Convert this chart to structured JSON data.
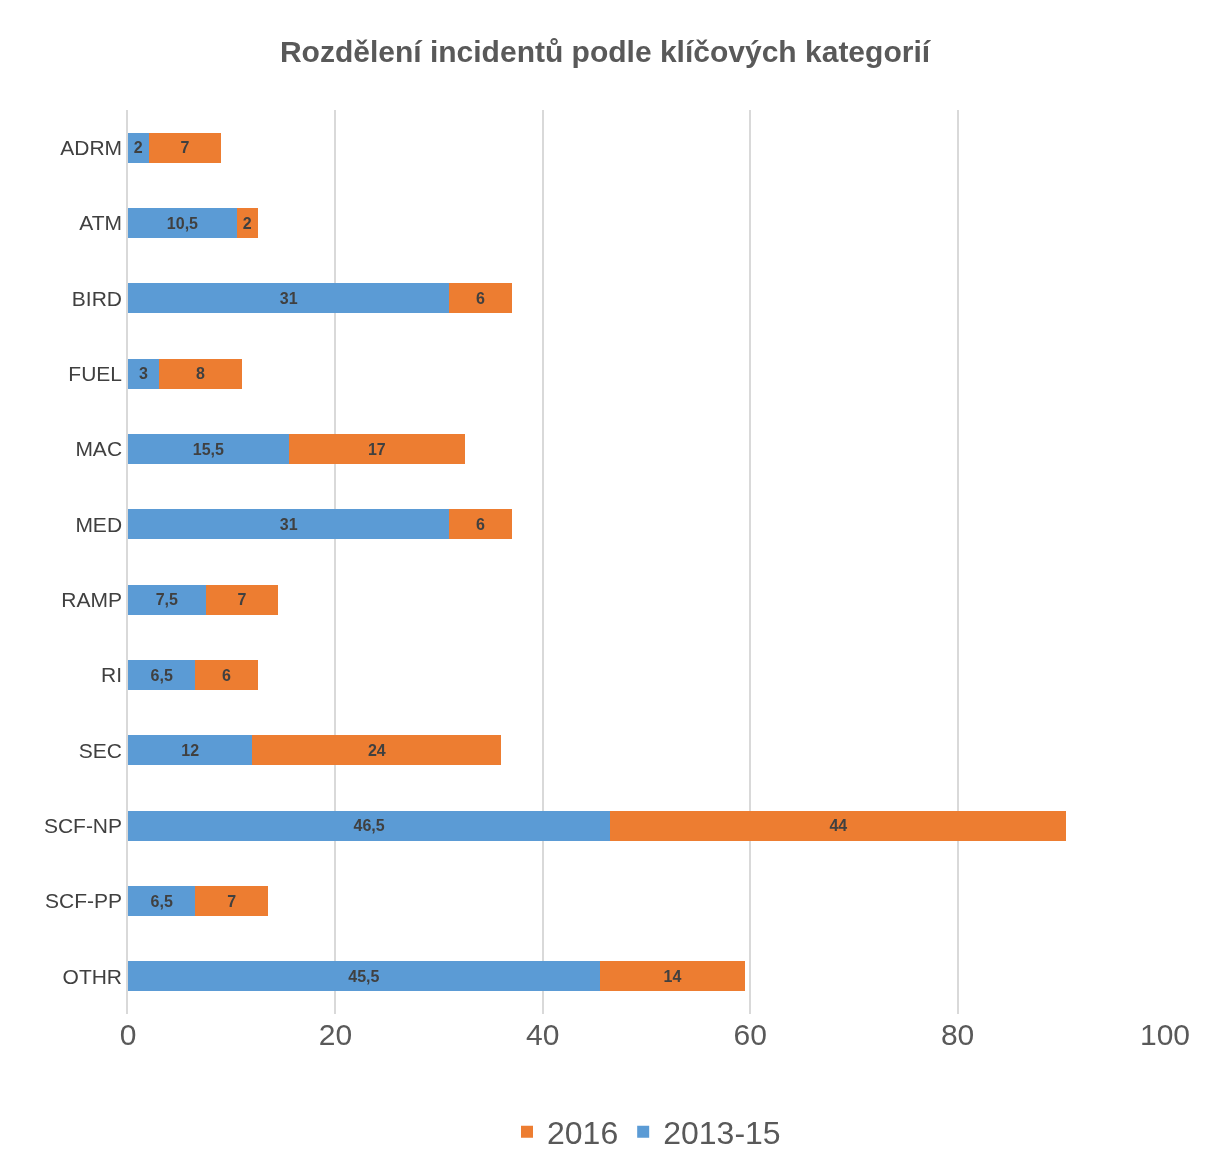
{
  "chart_data": {
    "type": "bar",
    "orientation": "horizontal",
    "stacked": true,
    "title": "Rozdělení incidentů podle klíčových kategorií",
    "categories": [
      "ADRM",
      "ATM",
      "BIRD",
      "FUEL",
      "MAC",
      "MED",
      "RAMP",
      "RI",
      "SEC",
      "SCF-NP",
      "SCF-PP",
      "OTHR"
    ],
    "series": [
      {
        "name": "2013-15",
        "color": "#5b9bd5",
        "values": [
          2,
          10.5,
          31,
          3,
          15.5,
          31,
          7.5,
          6.5,
          12,
          46.5,
          6.5,
          45.5
        ],
        "value_labels": [
          "2",
          "10,5",
          "31",
          "3",
          "15,5",
          "31",
          "7,5",
          "6,5",
          "12",
          "46,5",
          "6,5",
          "45,5"
        ]
      },
      {
        "name": "2016",
        "color": "#ed7d31",
        "values": [
          7,
          2,
          6,
          8,
          17,
          6,
          7,
          6,
          24,
          44,
          7,
          14
        ],
        "value_labels": [
          "7",
          "2",
          "6",
          "8",
          "17",
          "6",
          "7",
          "6",
          "24",
          "44",
          "7",
          "14"
        ]
      }
    ],
    "xlim": [
      0,
      100
    ],
    "xticks": [
      0,
      20,
      40,
      60,
      80,
      100
    ],
    "grid": "x",
    "legend": "bottom"
  }
}
